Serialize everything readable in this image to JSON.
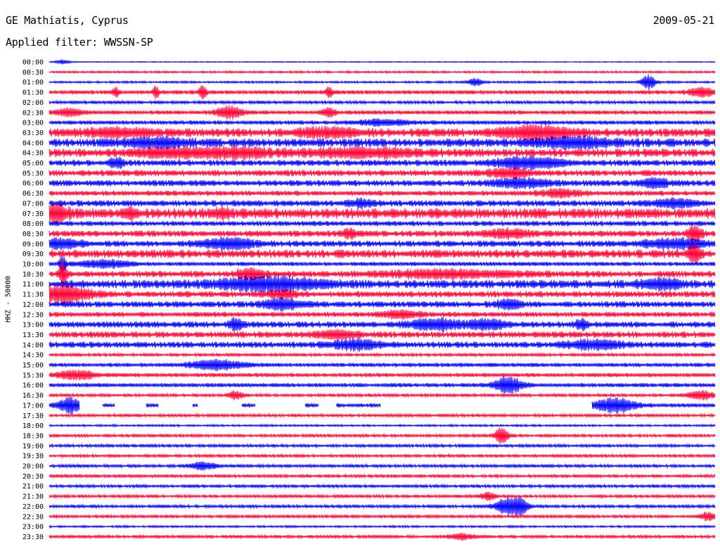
{
  "header": {
    "station": "GE Mathiatis, Cyprus",
    "filter": "Applied filter: WWSSN-SP",
    "date": "2009-05-21"
  },
  "colors": {
    "even_trace": "#0000ff",
    "odd_trace": "#ff0033",
    "background": "#ffffff"
  },
  "chart_data": {
    "type": "line",
    "title": "GE Mathiatis, Cyprus",
    "subtitle": "Applied filter: WWSSN-SP",
    "ylabel": "HHZ - 50000",
    "xlabel": "",
    "grid": false,
    "categories": [
      "00:00",
      "00:30",
      "01:00",
      "01:30",
      "02:00",
      "02:30",
      "03:00",
      "03:30",
      "04:00",
      "04:30",
      "05:00",
      "05:30",
      "06:00",
      "06:30",
      "07:00",
      "07:30",
      "08:00",
      "08:30",
      "09:00",
      "09:30",
      "10:00",
      "10:30",
      "11:00",
      "11:30",
      "12:00",
      "12:30",
      "13:00",
      "13:30",
      "14:00",
      "14:30",
      "15:00",
      "15:30",
      "16:00",
      "16:30",
      "17:00",
      "17:30",
      "18:00",
      "18:30",
      "19:00",
      "19:30",
      "20:00",
      "20:30",
      "21:00",
      "21:30",
      "22:00",
      "22:30",
      "23:00",
      "23:30"
    ],
    "noise": [
      0.5,
      1,
      1,
      2,
      1.5,
      2,
      2,
      4,
      4,
      4,
      3,
      3,
      3,
      2.5,
      3,
      5,
      2.5,
      3,
      3,
      4,
      2,
      3,
      4,
      3,
      3,
      2.5,
      3,
      3,
      3,
      1.5,
      2,
      2,
      2,
      1.5,
      2,
      1.5,
      1,
      1.5,
      1.5,
      1.5,
      1.5,
      1.5,
      1.5,
      1.5,
      1.5,
      1.5,
      1,
      1.5
    ],
    "bursts": [
      [
        [
          0.02,
          0.01,
          3
        ]
      ],
      [],
      [
        [
          0.9,
          0.01,
          10
        ],
        [
          0.64,
          0.01,
          6
        ]
      ],
      [
        [
          0.1,
          0.005,
          6
        ],
        [
          0.16,
          0.005,
          8
        ],
        [
          0.23,
          0.005,
          10
        ],
        [
          0.42,
          0.005,
          9
        ],
        [
          0.98,
          0.02,
          6
        ]
      ],
      [],
      [
        [
          0.03,
          0.02,
          5
        ],
        [
          0.27,
          0.02,
          8
        ],
        [
          0.42,
          0.01,
          6
        ]
      ],
      [
        [
          0.5,
          0.04,
          4
        ]
      ],
      [
        [
          0.1,
          0.05,
          5
        ],
        [
          0.42,
          0.05,
          5
        ],
        [
          0.73,
          0.05,
          8
        ]
      ],
      [
        [
          0.16,
          0.05,
          5
        ],
        [
          0.79,
          0.06,
          6
        ]
      ],
      [
        [
          0.18,
          0.05,
          5
        ],
        [
          0.28,
          0.05,
          6
        ],
        [
          0.47,
          0.08,
          5
        ]
      ],
      [
        [
          0.1,
          0.01,
          7
        ],
        [
          0.72,
          0.05,
          7
        ]
      ],
      [
        [
          0.69,
          0.03,
          6
        ]
      ],
      [
        [
          0.71,
          0.04,
          6
        ],
        [
          0.91,
          0.02,
          6
        ]
      ],
      [
        [
          0.77,
          0.03,
          5
        ]
      ],
      [
        [
          0.47,
          0.02,
          5
        ],
        [
          0.94,
          0.03,
          5
        ]
      ],
      [
        [
          0.01,
          0.02,
          10
        ],
        [
          0.12,
          0.01,
          6
        ],
        [
          0.26,
          0.01,
          6
        ]
      ],
      [],
      [
        [
          0.45,
          0.01,
          6
        ],
        [
          0.69,
          0.04,
          5
        ],
        [
          0.97,
          0.01,
          12
        ]
      ],
      [
        [
          0.02,
          0.03,
          6
        ],
        [
          0.27,
          0.04,
          7
        ],
        [
          0.94,
          0.05,
          6
        ]
      ],
      [
        [
          0.97,
          0.01,
          12
        ]
      ],
      [
        [
          0.02,
          0.005,
          12
        ],
        [
          0.08,
          0.04,
          5
        ]
      ],
      [
        [
          0.02,
          0.005,
          16
        ],
        [
          0.3,
          0.02,
          7
        ],
        [
          0.6,
          0.1,
          5
        ]
      ],
      [
        [
          0.33,
          0.08,
          8
        ],
        [
          0.92,
          0.03,
          7
        ]
      ],
      [
        [
          0.02,
          0.04,
          12
        ],
        [
          0.35,
          0.02,
          5
        ]
      ],
      [
        [
          0.35,
          0.03,
          7
        ],
        [
          0.69,
          0.02,
          6
        ]
      ],
      [
        [
          0.53,
          0.03,
          5
        ]
      ],
      [
        [
          0.28,
          0.01,
          8
        ],
        [
          0.58,
          0.04,
          7
        ],
        [
          0.66,
          0.03,
          6
        ],
        [
          0.8,
          0.01,
          6
        ]
      ],
      [
        [
          0.43,
          0.03,
          5
        ]
      ],
      [
        [
          0.46,
          0.04,
          6
        ],
        [
          0.82,
          0.04,
          6
        ]
      ],
      [],
      [
        [
          0.25,
          0.04,
          7
        ]
      ],
      [
        [
          0.04,
          0.03,
          6
        ]
      ],
      [
        [
          0.69,
          0.02,
          12
        ]
      ],
      [
        [
          0.28,
          0.01,
          6
        ],
        [
          0.98,
          0.02,
          6
        ]
      ],
      [
        [
          0.03,
          0.02,
          10
        ],
        [
          0.85,
          0.03,
          10
        ]
      ],
      [],
      [],
      [
        [
          0.68,
          0.01,
          12
        ]
      ],
      [],
      [],
      [
        [
          0.23,
          0.02,
          5
        ]
      ],
      [],
      [],
      [
        [
          0.66,
          0.01,
          6
        ]
      ],
      [
        [
          0.69,
          0.02,
          12
        ],
        [
          0.71,
          0.01,
          8
        ]
      ],
      [
        [
          0.99,
          0.01,
          6
        ]
      ],
      [],
      [
        [
          0.62,
          0.02,
          4
        ]
      ]
    ],
    "gaps": [
      [],
      [],
      [],
      [],
      [],
      [],
      [],
      [],
      [],
      [],
      [],
      [],
      [],
      [],
      [],
      [],
      [],
      [],
      [],
      [],
      [],
      [],
      [],
      [],
      [],
      [],
      [],
      [],
      [],
      [],
      [],
      [],
      [],
      [],
      [
        [
          0.045,
          0.08
        ],
        [
          0.098,
          0.145
        ],
        [
          0.163,
          0.214
        ],
        [
          0.223,
          0.288
        ],
        [
          0.309,
          0.384
        ],
        [
          0.404,
          0.43
        ],
        [
          0.498,
          0.815
        ]
      ],
      [],
      [],
      [],
      [],
      [],
      [],
      [],
      [],
      [],
      [],
      [],
      [],
      []
    ]
  }
}
